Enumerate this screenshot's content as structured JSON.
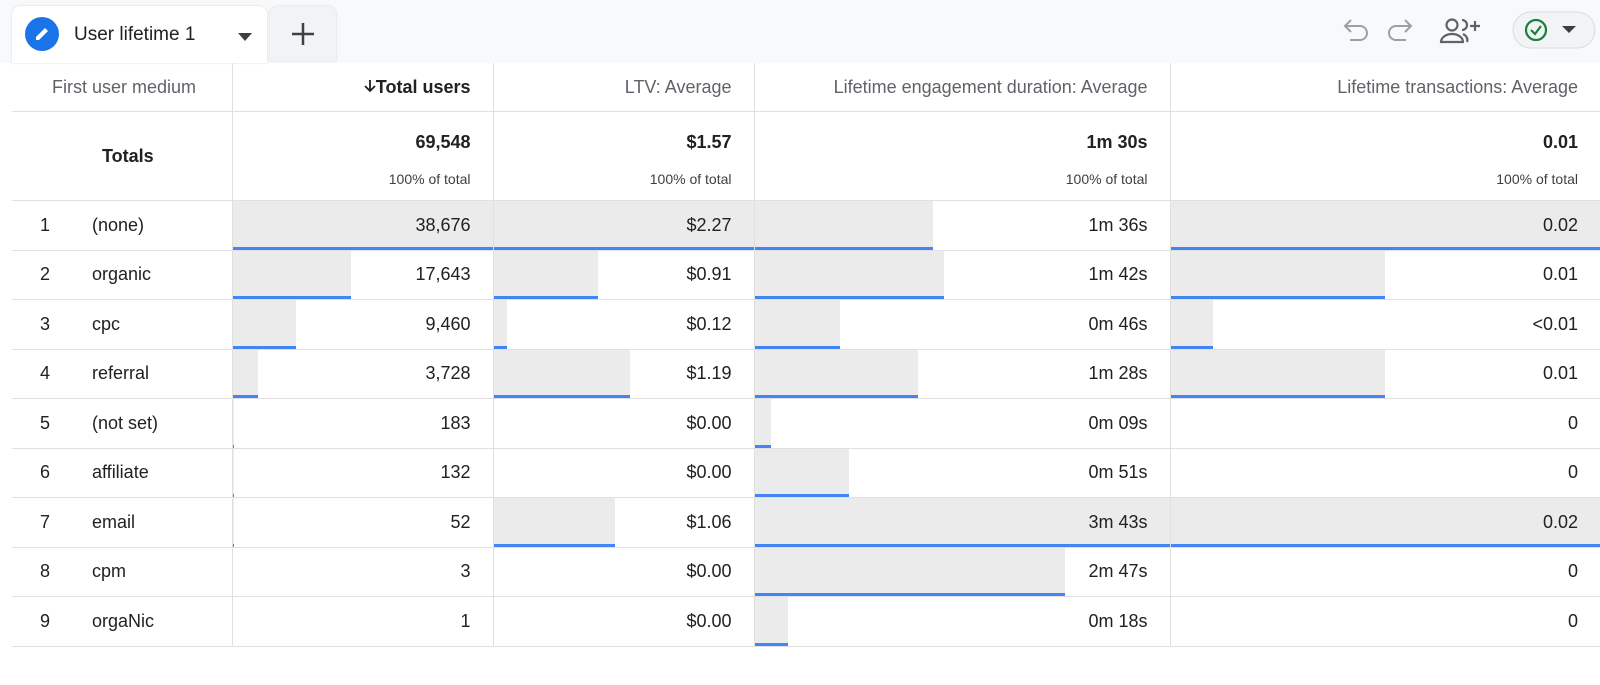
{
  "tab": {
    "title": "User lifetime 1"
  },
  "table": {
    "columns": [
      "First user medium",
      "Total users",
      "LTV: Average",
      "Lifetime engagement duration: Average",
      "Lifetime transactions: Average"
    ],
    "totals": {
      "label": "Totals",
      "values": [
        "69,548",
        "$1.57",
        "1m 30s",
        "0.01"
      ],
      "share": "100% of total"
    },
    "rows": [
      {
        "index": 1,
        "medium": "(none)",
        "cells": [
          {
            "value": 38676,
            "label": "38,676"
          },
          {
            "value": 2.27,
            "label": "$2.27"
          },
          {
            "value": 96,
            "label": "1m 36s"
          },
          {
            "value": 0.02,
            "label": "0.02"
          }
        ]
      },
      {
        "index": 2,
        "medium": "organic",
        "cells": [
          {
            "value": 17643,
            "label": "17,643"
          },
          {
            "value": 0.91,
            "label": "$0.91"
          },
          {
            "value": 102,
            "label": "1m 42s"
          },
          {
            "value": 0.01,
            "label": "0.01"
          }
        ]
      },
      {
        "index": 3,
        "medium": "cpc",
        "cells": [
          {
            "value": 9460,
            "label": "9,460"
          },
          {
            "value": 0.12,
            "label": "$0.12"
          },
          {
            "value": 46,
            "label": "0m 46s"
          },
          {
            "value": 0.002,
            "label": "<0.01"
          }
        ]
      },
      {
        "index": 4,
        "medium": "referral",
        "cells": [
          {
            "value": 3728,
            "label": "3,728"
          },
          {
            "value": 1.19,
            "label": "$1.19"
          },
          {
            "value": 88,
            "label": "1m 28s"
          },
          {
            "value": 0.01,
            "label": "0.01"
          }
        ]
      },
      {
        "index": 5,
        "medium": "(not set)",
        "cells": [
          {
            "value": 183,
            "label": "183"
          },
          {
            "value": 0,
            "label": "$0.00"
          },
          {
            "value": 9,
            "label": "0m 09s"
          },
          {
            "value": 0,
            "label": "0"
          }
        ]
      },
      {
        "index": 6,
        "medium": "affiliate",
        "cells": [
          {
            "value": 132,
            "label": "132"
          },
          {
            "value": 0,
            "label": "$0.00"
          },
          {
            "value": 51,
            "label": "0m 51s"
          },
          {
            "value": 0,
            "label": "0"
          }
        ]
      },
      {
        "index": 7,
        "medium": "email",
        "cells": [
          {
            "value": 52,
            "label": "52"
          },
          {
            "value": 1.06,
            "label": "$1.06"
          },
          {
            "value": 223,
            "label": "3m 43s"
          },
          {
            "value": 0.02,
            "label": "0.02"
          }
        ]
      },
      {
        "index": 8,
        "medium": "cpm",
        "cells": [
          {
            "value": 3,
            "label": "3"
          },
          {
            "value": 0,
            "label": "$0.00"
          },
          {
            "value": 167,
            "label": "2m 47s"
          },
          {
            "value": 0,
            "label": "0"
          }
        ]
      },
      {
        "index": 9,
        "medium": "orgaNic",
        "cells": [
          {
            "value": 1,
            "label": "1"
          },
          {
            "value": 0,
            "label": "$0.00"
          },
          {
            "value": 18,
            "label": "0m 18s"
          },
          {
            "value": 0,
            "label": "0"
          }
        ]
      }
    ]
  }
}
